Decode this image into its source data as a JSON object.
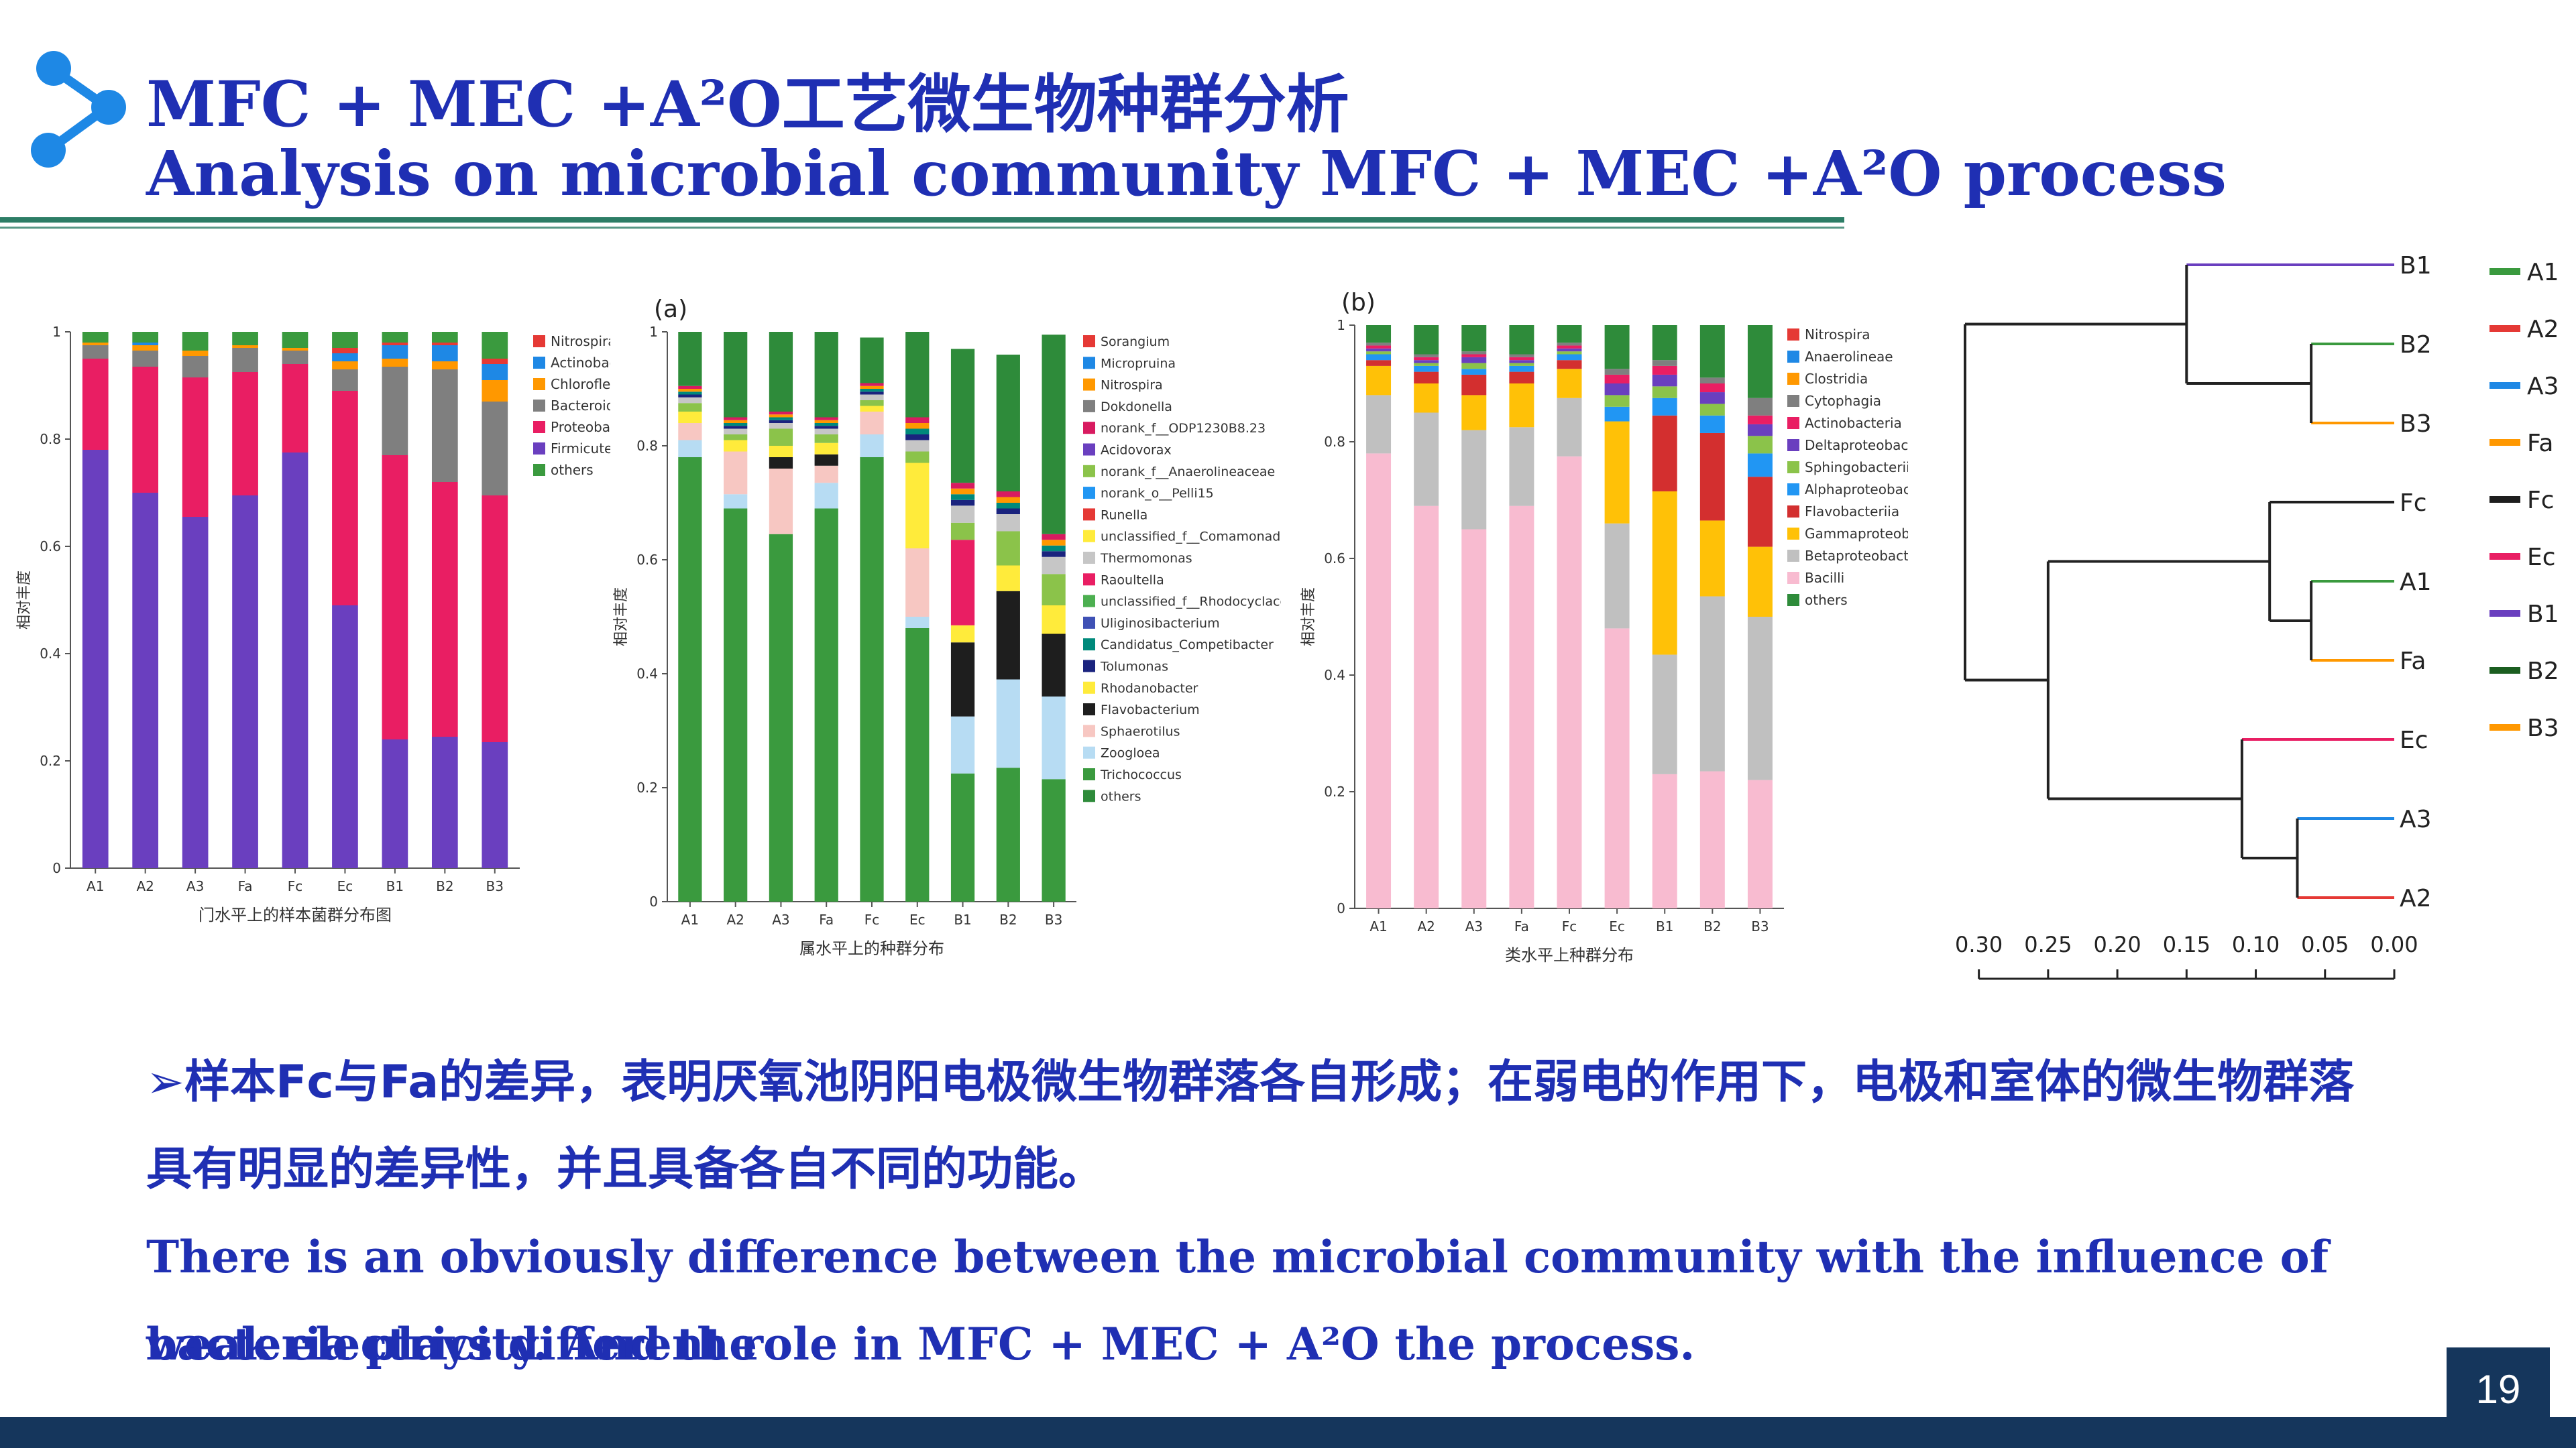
{
  "header": {
    "title_cn": "MFC + MEC +A²O工艺微生物种群分析",
    "title_en": "Analysis on microbial community MFC + MEC +A²O process"
  },
  "text": {
    "bullet_cn_1": "➢样本Fc与Fa的差异，表明厌氧池阴阳电极微生物群落各自形成；在弱电的作用下，电极和室体的微生物群落",
    "bullet_cn_2": "具有明显的差异性，并且具备各自不同的功能。",
    "en_1": "There is an obviously difference between the microbial community with the influence of weak electricity. And the",
    "en_2": "bacteria plays different role in MFC + MEC + A²O the process."
  },
  "page_number": "19",
  "colors": {
    "title": "#1f2fb3",
    "rule": "#2d7d66",
    "footer": "#15365c"
  },
  "chart_data": [
    {
      "type": "bar",
      "stacked": true,
      "panel_label": "",
      "xlabel": "门水平上的样本菌群分布图",
      "ylabel": "相对丰度",
      "ylim": [
        0,
        1
      ],
      "yticks": [
        "0",
        "0.2",
        "0.4",
        "0.6",
        "0.8",
        "1"
      ],
      "categories": [
        "A1",
        "A2",
        "A3",
        "Fa",
        "Fc",
        "Ec",
        "B1",
        "B2",
        "B3"
      ],
      "series": [
        {
          "name": "Firmicutes",
          "color": "#6a3fbf",
          "values": [
            0.78,
            0.7,
            0.655,
            0.695,
            0.775,
            0.49,
            0.24,
            0.245,
            0.235
          ]
        },
        {
          "name": "Proteobacteria",
          "color": "#e91e63",
          "values": [
            0.17,
            0.235,
            0.26,
            0.23,
            0.165,
            0.4,
            0.53,
            0.475,
            0.46
          ]
        },
        {
          "name": "Bacteroidetes",
          "color": "#7f7f7f",
          "values": [
            0.025,
            0.03,
            0.04,
            0.045,
            0.025,
            0.04,
            0.165,
            0.21,
            0.175
          ]
        },
        {
          "name": "Chloroflexi",
          "color": "#ff9800",
          "values": [
            0.005,
            0.01,
            0.01,
            0.005,
            0.005,
            0.015,
            0.015,
            0.015,
            0.04
          ]
        },
        {
          "name": "Actinobacteria",
          "color": "#1e88e5",
          "values": [
            0.0,
            0.005,
            0.0,
            0.0,
            0.0,
            0.015,
            0.025,
            0.03,
            0.03
          ]
        },
        {
          "name": "Nitrospirae",
          "color": "#e53935",
          "values": [
            0.0,
            0.0,
            0.0,
            0.0,
            0.0,
            0.01,
            0.005,
            0.005,
            0.01
          ]
        },
        {
          "name": "others",
          "color": "#3a9a3e",
          "values": [
            0.02,
            0.02,
            0.035,
            0.025,
            0.03,
            0.03,
            0.02,
            0.02,
            0.05
          ]
        }
      ],
      "legend": [
        "Nitrospirae",
        "Actinobacte",
        "Chloroflexi",
        "Bacteroidet",
        "Proteobacte",
        "Firmicutes",
        "others"
      ],
      "legend_colors": [
        "#e53935",
        "#1e88e5",
        "#ff9800",
        "#7f7f7f",
        "#e91e63",
        "#6a3fbf",
        "#3a9a3e"
      ]
    },
    {
      "type": "bar",
      "stacked": true,
      "panel_label": "(a)",
      "xlabel": "属水平上的种群分布",
      "ylabel": "相对丰度",
      "ylim": [
        0,
        1
      ],
      "yticks": [
        "0",
        "0.2",
        "0.4",
        "0.6",
        "0.8",
        "1"
      ],
      "categories": [
        "A1",
        "A2",
        "A3",
        "Fa",
        "Fc",
        "Ec",
        "B1",
        "B2",
        "B3"
      ],
      "series": [
        {
          "name": "Trichococcus",
          "color": "#3a9a3e",
          "values": [
            0.78,
            0.69,
            0.645,
            0.69,
            0.78,
            0.48,
            0.225,
            0.235,
            0.215
          ]
        },
        {
          "name": "Zoogloea",
          "color": "#b7dcf3",
          "values": [
            0.03,
            0.025,
            0.0,
            0.045,
            0.04,
            0.02,
            0.1,
            0.155,
            0.145
          ]
        },
        {
          "name": "Sphaerotilus",
          "color": "#f7c7c2",
          "values": [
            0.03,
            0.075,
            0.115,
            0.03,
            0.04,
            0.12,
            0.0,
            0.0,
            0.0
          ]
        },
        {
          "name": "Flavobacterium",
          "color": "#1e1e1e",
          "values": [
            0.0,
            0.0,
            0.02,
            0.02,
            0.0,
            0.0,
            0.13,
            0.155,
            0.11
          ]
        },
        {
          "name": "Rhodanobacter",
          "color": "#ffeb3b",
          "values": [
            0.02,
            0.02,
            0.02,
            0.02,
            0.01,
            0.15,
            0.03,
            0.045,
            0.05
          ]
        },
        {
          "name": "Raoultella",
          "color": "#e91e63",
          "values": [
            0.0,
            0.0,
            0.0,
            0.0,
            0.0,
            0.0,
            0.15,
            0.0,
            0.0
          ]
        },
        {
          "name": "Acidovorax",
          "color": "#8bc34a",
          "values": [
            0.015,
            0.01,
            0.03,
            0.015,
            0.01,
            0.02,
            0.03,
            0.06,
            0.055
          ]
        },
        {
          "name": "unclassified_f__Comamonadaceae",
          "color": "#c6c6c6",
          "values": [
            0.01,
            0.01,
            0.01,
            0.01,
            0.01,
            0.02,
            0.03,
            0.03,
            0.03
          ]
        },
        {
          "name": "Tolumonas",
          "color": "#1a237e",
          "values": [
            0.005,
            0.005,
            0.005,
            0.005,
            0.005,
            0.01,
            0.01,
            0.01,
            0.01
          ]
        },
        {
          "name": "Candidatus_Competibacter",
          "color": "#00897b",
          "values": [
            0.005,
            0.005,
            0.005,
            0.005,
            0.005,
            0.01,
            0.01,
            0.01,
            0.01
          ]
        },
        {
          "name": "Dokdonella",
          "color": "#ff9800",
          "values": [
            0.005,
            0.005,
            0.005,
            0.005,
            0.005,
            0.01,
            0.01,
            0.01,
            0.01
          ]
        },
        {
          "name": "norank_f__ODP1230B8.23",
          "color": "#d81b60",
          "values": [
            0.005,
            0.005,
            0.005,
            0.005,
            0.005,
            0.01,
            0.01,
            0.01,
            0.01
          ]
        },
        {
          "name": "others",
          "color": "#2e8b3a",
          "values": [
            0.095,
            0.15,
            0.14,
            0.15,
            0.08,
            0.15,
            0.235,
            0.24,
            0.35
          ]
        }
      ],
      "legend": [
        "Sorangium",
        "Micropruina",
        "Nitrospira",
        "Dokdonella",
        "norank_f__ODP1230B8.23",
        "Acidovorax",
        "norank_f__Anaerolineaceae",
        "norank_o__Pelli15",
        "Runella",
        "unclassified_f__Comamonadaceae",
        "Thermomonas",
        "Raoultella",
        "unclassified_f__Rhodocyclaceae",
        "Uliginosibacterium",
        "Candidatus_Competibacter",
        "Tolumonas",
        "Rhodanobacter",
        "Flavobacterium",
        "Sphaerotilus",
        "Zoogloea",
        "Trichococcus",
        "others"
      ],
      "legend_colors": [
        "#e53935",
        "#1e88e5",
        "#ff9800",
        "#7f7f7f",
        "#d81b60",
        "#6a3fbf",
        "#8bc34a",
        "#2196f3",
        "#e53935",
        "#ffeb3b",
        "#c6c6c6",
        "#e91e63",
        "#4caf50",
        "#3f51b5",
        "#00897b",
        "#1a237e",
        "#ffeb3b",
        "#1e1e1e",
        "#f7c7c2",
        "#b7dcf3",
        "#3a9a3e",
        "#2e8b3a"
      ]
    },
    {
      "type": "bar",
      "stacked": true,
      "panel_label": "(b)",
      "xlabel": "类水平上种群分布",
      "ylabel": "相对丰度",
      "ylim": [
        0,
        1
      ],
      "yticks": [
        "0",
        "0.2",
        "0.4",
        "0.6",
        "0.8",
        "1"
      ],
      "categories": [
        "A1",
        "A2",
        "A3",
        "Fa",
        "Fc",
        "Ec",
        "B1",
        "B2",
        "B3"
      ],
      "series": [
        {
          "name": "Bacilli",
          "color": "#f8bbd0",
          "values": [
            0.78,
            0.69,
            0.65,
            0.69,
            0.775,
            0.48,
            0.23,
            0.235,
            0.22
          ]
        },
        {
          "name": "Betaproteobacteria",
          "color": "#c0c0c0",
          "values": [
            0.1,
            0.16,
            0.17,
            0.135,
            0.1,
            0.18,
            0.205,
            0.3,
            0.28
          ]
        },
        {
          "name": "Gammaproteobacteria",
          "color": "#ffc107",
          "values": [
            0.05,
            0.05,
            0.06,
            0.075,
            0.05,
            0.175,
            0.28,
            0.13,
            0.12
          ]
        },
        {
          "name": "Flavobacteriia",
          "color": "#d32f2f",
          "values": [
            0.01,
            0.02,
            0.035,
            0.02,
            0.015,
            0.0,
            0.13,
            0.15,
            0.12
          ]
        },
        {
          "name": "Alphaproteobacteria",
          "color": "#2196f3",
          "values": [
            0.01,
            0.01,
            0.01,
            0.01,
            0.01,
            0.025,
            0.03,
            0.03,
            0.04
          ]
        },
        {
          "name": "Sphingobacteriia",
          "color": "#8bc34a",
          "values": [
            0.005,
            0.005,
            0.01,
            0.005,
            0.005,
            0.02,
            0.02,
            0.02,
            0.03
          ]
        },
        {
          "name": "Deltaproteobacteria",
          "color": "#6a3fbf",
          "values": [
            0.005,
            0.005,
            0.01,
            0.005,
            0.005,
            0.02,
            0.02,
            0.02,
            0.02
          ]
        },
        {
          "name": "Actinobacteria",
          "color": "#e91e63",
          "values": [
            0.005,
            0.005,
            0.005,
            0.005,
            0.005,
            0.015,
            0.015,
            0.015,
            0.015
          ]
        },
        {
          "name": "Cytophagia",
          "color": "#7f7f7f",
          "values": [
            0.005,
            0.005,
            0.005,
            0.005,
            0.005,
            0.01,
            0.01,
            0.01,
            0.03
          ]
        },
        {
          "name": "others",
          "color": "#2e8b3a",
          "values": [
            0.03,
            0.05,
            0.045,
            0.05,
            0.03,
            0.075,
            0.06,
            0.09,
            0.125
          ]
        }
      ],
      "legend": [
        "Nitrospira",
        "Anaerolineae",
        "Clostridia",
        "Cytophagia",
        "Actinobacteria",
        "Deltaproteobacteria",
        "Sphingobacteriia",
        "Alphaproteobacteria",
        "Flavobacteriia",
        "Gammaproteobacteria",
        "Betaproteobacteria",
        "Bacilli",
        "others"
      ],
      "legend_colors": [
        "#e53935",
        "#1e88e5",
        "#ff9800",
        "#7f7f7f",
        "#e91e63",
        "#6a3fbf",
        "#8bc34a",
        "#2196f3",
        "#d32f2f",
        "#ffc107",
        "#c0c0c0",
        "#f8bbd0",
        "#2e8b3a"
      ]
    },
    {
      "type": "dendrogram",
      "leaves": [
        "B1",
        "B2",
        "B3",
        "Fc",
        "A1",
        "Fa",
        "Ec",
        "A3",
        "A2"
      ],
      "leaf_colors": [
        "#6a3fbf",
        "#3a9a3e",
        "#ff9800",
        "#1e1e1e",
        "#3a9a3e",
        "#ff9800",
        "#e91e63",
        "#1e88e5",
        "#e53935"
      ],
      "axis_ticks": [
        "0.30",
        "0.25",
        "0.20",
        "0.15",
        "0.10",
        "0.05",
        "0.00"
      ],
      "axis_range": [
        0.3,
        0.0
      ],
      "merges": [
        {
          "a": "B2",
          "b": "B3",
          "height": 0.06
        },
        {
          "a": "A1",
          "b": "Fa",
          "height": 0.06
        },
        {
          "a": "A3",
          "b": "A2",
          "height": 0.07
        },
        {
          "a": "B1",
          "b": "B2+B3",
          "height": 0.15
        },
        {
          "a": "Fc",
          "b": "A1+Fa",
          "height": 0.09
        },
        {
          "a": "Ec",
          "b": "A3+A2",
          "height": 0.11
        },
        {
          "a": "Fc+A1+Fa",
          "b": "Ec+A3+A2",
          "height": 0.25
        },
        {
          "a": "B1+B2+B3",
          "b": "rest",
          "height": 0.31
        }
      ],
      "legend": [
        "A1",
        "A2",
        "A3",
        "Fa",
        "Fc",
        "Ec",
        "B1",
        "B2",
        "B3"
      ],
      "legend_colors": [
        "#3a9a3e",
        "#e53935",
        "#1e88e5",
        "#ff9800",
        "#1e1e1e",
        "#e91e63",
        "#6a3fbf",
        "#1b5e20",
        "#ff9800"
      ]
    }
  ]
}
